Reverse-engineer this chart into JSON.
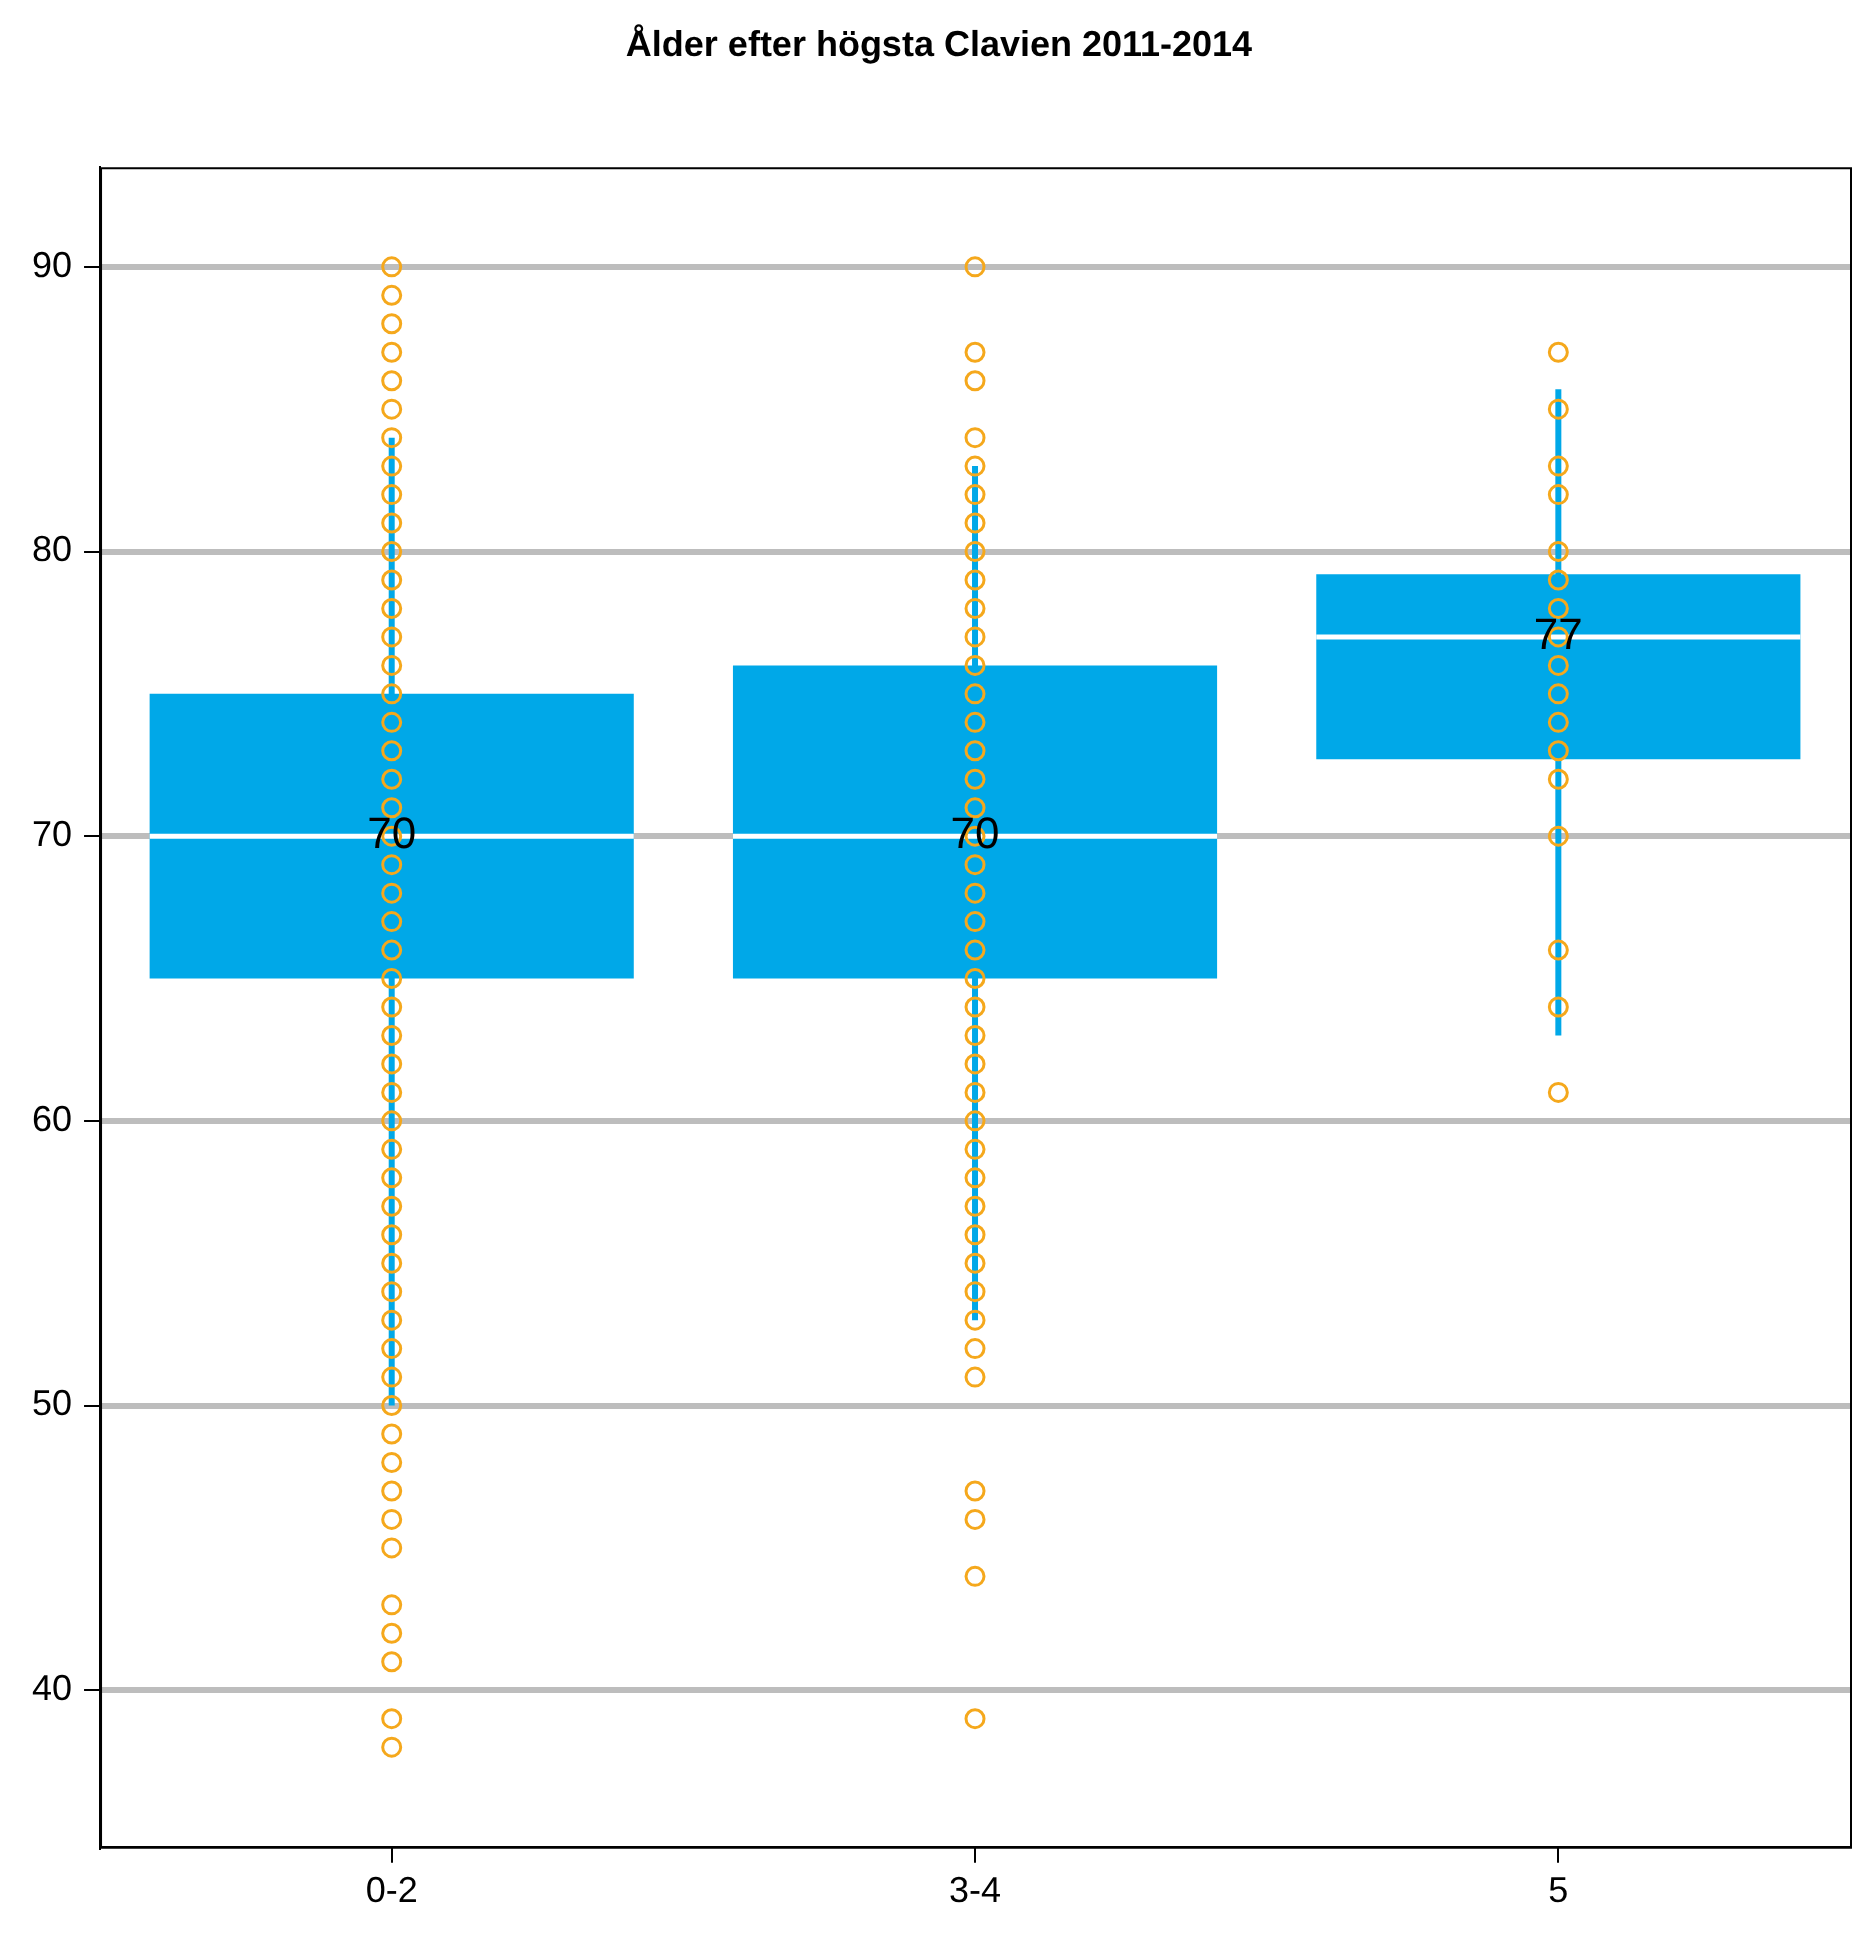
{
  "chart_data": {
    "type": "box",
    "title": "Ålder efter högsta Clavien 2011-2014",
    "categories": [
      "0-2",
      "3-4",
      "5"
    ],
    "ylim": [
      34.5,
      93.5
    ],
    "yticks": [
      40,
      50,
      60,
      70,
      80,
      90
    ],
    "grid": "y",
    "marker": "circle",
    "series": [
      {
        "type": "box",
        "color": "#00a8e8",
        "boxes": [
          {
            "low": 50,
            "q1": 65,
            "median": 70,
            "q3": 75,
            "high": 84
          },
          {
            "low": 53,
            "q1": 65,
            "median": 70,
            "q3": 76,
            "high": 83
          },
          {
            "low": 63,
            "q1": 72.7,
            "median": 77,
            "q3": 79.2,
            "high": 85.7
          }
        ]
      },
      {
        "type": "scatter",
        "color": "#f5a81c",
        "x": [
          "0-2",
          "0-2",
          "0-2",
          "0-2",
          "0-2",
          "0-2",
          "0-2",
          "0-2",
          "0-2",
          "0-2",
          "0-2",
          "0-2",
          "0-2",
          "0-2",
          "0-2",
          "0-2",
          "0-2",
          "0-2",
          "0-2",
          "0-2",
          "0-2",
          "0-2",
          "0-2",
          "0-2",
          "0-2",
          "0-2",
          "0-2",
          "0-2",
          "0-2",
          "0-2",
          "0-2",
          "0-2",
          "0-2",
          "0-2",
          "0-2",
          "0-2",
          "0-2",
          "0-2",
          "0-2",
          "0-2",
          "0-2",
          "0-2",
          "0-2",
          "0-2",
          "0-2",
          "0-2",
          "0-2",
          "0-2",
          "0-2",
          "0-2",
          "0-2",
          "3-4",
          "3-4",
          "3-4",
          "3-4",
          "3-4",
          "3-4",
          "3-4",
          "3-4",
          "3-4",
          "3-4",
          "3-4",
          "3-4",
          "3-4",
          "3-4",
          "3-4",
          "3-4",
          "3-4",
          "3-4",
          "3-4",
          "3-4",
          "3-4",
          "3-4",
          "3-4",
          "3-4",
          "3-4",
          "3-4",
          "3-4",
          "3-4",
          "3-4",
          "3-4",
          "3-4",
          "3-4",
          "3-4",
          "3-4",
          "3-4",
          "3-4",
          "3-4",
          "3-4",
          "3-4",
          "3-4",
          "3-4",
          "5",
          "5",
          "5",
          "5",
          "5",
          "5",
          "5",
          "5",
          "5",
          "5",
          "5",
          "5",
          "5",
          "5",
          "5",
          "5",
          "5"
        ],
        "values": [
          38,
          39,
          41,
          42,
          43,
          45,
          46,
          47,
          48,
          49,
          50,
          51,
          52,
          53,
          54,
          55,
          56,
          57,
          58,
          59,
          60,
          61,
          62,
          63,
          64,
          65,
          66,
          67,
          68,
          69,
          70,
          71,
          72,
          73,
          74,
          75,
          76,
          77,
          78,
          79,
          80,
          81,
          82,
          83,
          84,
          85,
          86,
          87,
          88,
          89,
          90,
          39,
          44,
          46,
          47,
          51,
          52,
          53,
          54,
          55,
          56,
          57,
          58,
          59,
          60,
          61,
          62,
          63,
          64,
          65,
          66,
          67,
          68,
          69,
          70,
          71,
          72,
          73,
          74,
          75,
          76,
          77,
          78,
          79,
          80,
          81,
          82,
          83,
          84,
          86,
          87,
          90,
          61,
          64,
          66,
          70,
          72,
          73,
          74,
          75,
          76,
          77,
          78,
          79,
          80,
          82,
          83,
          85,
          87
        ]
      }
    ],
    "annotations": [
      {
        "text": "70",
        "x": "0-2",
        "y": 70
      },
      {
        "text": "70",
        "x": "3-4",
        "y": 70
      },
      {
        "text": "77",
        "x": "5",
        "y": 77
      }
    ]
  }
}
